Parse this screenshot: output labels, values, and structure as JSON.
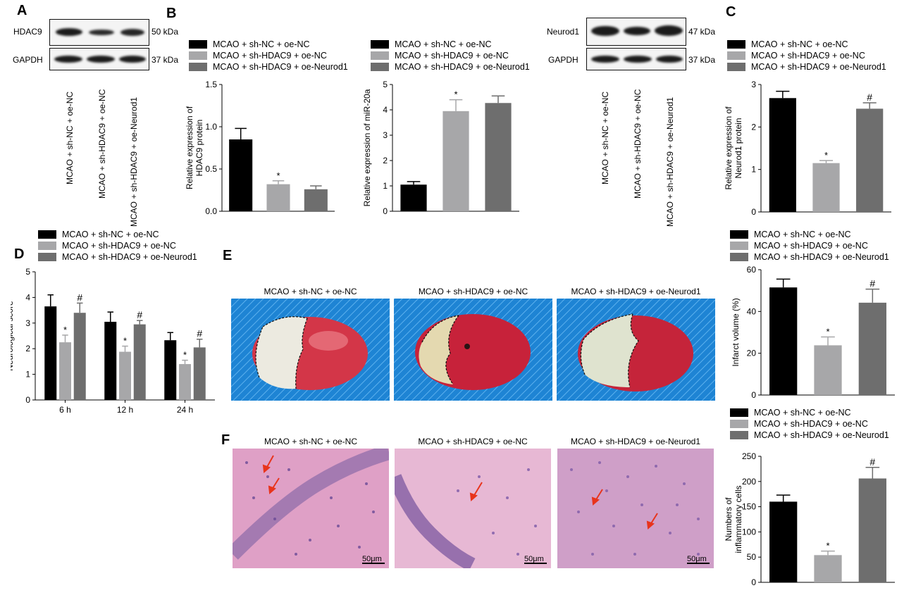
{
  "colors": {
    "series1": "#000000",
    "series2": "#a7a7a9",
    "series3": "#6e6e6e",
    "arrow": "#e8341c"
  },
  "legend_labels": [
    "MCAO + sh-NC + oe-NC",
    "MCAO + sh-HDAC9 + oe-NC",
    "MCAO + sh-HDAC9 + oe-Neurod1"
  ],
  "panels": {
    "A": "A",
    "B": "B",
    "C": "C",
    "D": "D",
    "E": "E",
    "F": "F"
  },
  "blotA": {
    "protein": "HDAC9",
    "protein_kda": "50 kDa",
    "control": "GAPDH",
    "control_kda": "37 kDa"
  },
  "blotC": {
    "protein": "Neurod1",
    "protein_kda": "47 kDa",
    "control": "GAPDH",
    "control_kda": "37 kDa"
  },
  "lane_labels": [
    "MCAO + sh-NC + oe-NC",
    "MCAO + sh-HDAC9 + oe-NC",
    "MCAO + sh-HDAC9 + oe-Neurod1"
  ],
  "photo_titles": [
    "MCAO + sh-NC + oe-NC",
    "MCAO + sh-HDAC9 + oe-NC",
    "MCAO + sh-HDAC9 + oe-Neurod1"
  ],
  "scale_bar": "50μm",
  "chart_data": [
    {
      "id": "hdac9",
      "type": "bar",
      "ylabel": "Relative expression of HDAC9 protein",
      "ylim": [
        0,
        1.5
      ],
      "yticks": [
        0.0,
        0.5,
        1.0,
        1.5
      ],
      "categories": [
        "MCAO + sh-NC + oe-NC",
        "MCAO + sh-HDAC9 + oe-NC",
        "MCAO + sh-HDAC9 + oe-Neurod1"
      ],
      "values": [
        0.85,
        0.32,
        0.26
      ],
      "errors": [
        0.13,
        0.04,
        0.04
      ],
      "marks": [
        "",
        "*",
        ""
      ]
    },
    {
      "id": "mir20a",
      "type": "bar",
      "ylabel": "Relative expression of miR-20a",
      "ylim": [
        0,
        5
      ],
      "yticks": [
        0,
        1,
        2,
        3,
        4,
        5
      ],
      "categories": [
        "MCAO + sh-NC + oe-NC",
        "MCAO + sh-HDAC9 + oe-NC",
        "MCAO + sh-HDAC9 + oe-Neurod1"
      ],
      "values": [
        1.05,
        3.95,
        4.27
      ],
      "errors": [
        0.12,
        0.45,
        0.28
      ],
      "marks": [
        "",
        "*",
        ""
      ]
    },
    {
      "id": "neurod1",
      "type": "bar",
      "ylabel": "Relative expression of Neurod1 protein",
      "ylim": [
        0,
        3
      ],
      "yticks": [
        0,
        1,
        2,
        3
      ],
      "categories": [
        "MCAO + sh-NC + oe-NC",
        "MCAO + sh-HDAC9 + oe-NC",
        "MCAO + sh-HDAC9 + oe-Neurod1"
      ],
      "values": [
        2.68,
        1.15,
        2.43
      ],
      "errors": [
        0.16,
        0.06,
        0.14
      ],
      "marks": [
        "",
        "*",
        "#"
      ]
    },
    {
      "id": "neuro_score",
      "type": "bar",
      "ylabel": "Neurological score",
      "ylim": [
        0,
        5
      ],
      "yticks": [
        0,
        1,
        2,
        3,
        4,
        5
      ],
      "categories": [
        "6 h",
        "12 h",
        "24 h"
      ],
      "series": [
        {
          "name": "MCAO + sh-NC + oe-NC",
          "values": [
            3.65,
            3.05,
            2.33
          ],
          "errors": [
            0.45,
            0.38,
            0.3
          ],
          "marks": [
            "",
            "",
            ""
          ]
        },
        {
          "name": "MCAO + sh-HDAC9 + oe-NC",
          "values": [
            2.25,
            1.88,
            1.4
          ],
          "errors": [
            0.28,
            0.22,
            0.15
          ],
          "marks": [
            "*",
            "*",
            "*"
          ]
        },
        {
          "name": "MCAO + sh-HDAC9 + oe-Neurod1",
          "values": [
            3.4,
            2.95,
            2.05
          ],
          "errors": [
            0.38,
            0.15,
            0.32
          ],
          "marks": [
            "#",
            "#",
            "#"
          ]
        }
      ]
    },
    {
      "id": "infarct",
      "type": "bar",
      "ylabel": "Infarct volume (%)",
      "ylim": [
        0,
        60
      ],
      "yticks": [
        0,
        20,
        40,
        60
      ],
      "categories": [
        "MCAO + sh-NC + oe-NC",
        "MCAO + sh-HDAC9 + oe-NC",
        "MCAO + sh-HDAC9 + oe-Neurod1"
      ],
      "values": [
        51.5,
        23.8,
        44.2
      ],
      "errors": [
        4.0,
        4.0,
        6.5
      ],
      "marks": [
        "",
        "*",
        "#"
      ]
    },
    {
      "id": "inflam",
      "type": "bar",
      "ylabel": "Numbers of inflammatory cells",
      "ylim": [
        0,
        250
      ],
      "yticks": [
        0,
        50,
        100,
        150,
        200,
        250
      ],
      "categories": [
        "MCAO + sh-NC + oe-NC",
        "MCAO + sh-HDAC9 + oe-NC",
        "MCAO + sh-HDAC9 + oe-Neurod1"
      ],
      "values": [
        160,
        54,
        206
      ],
      "errors": [
        13,
        8,
        22
      ],
      "marks": [
        "",
        "*",
        "#"
      ]
    }
  ]
}
